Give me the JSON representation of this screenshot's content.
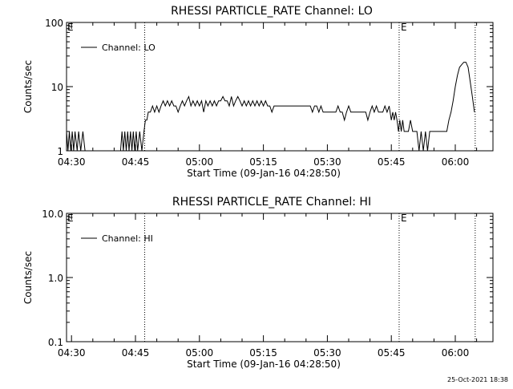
{
  "chart_data": [
    {
      "type": "line",
      "title": "RHESSI PARTICLE_RATE Channel: LO",
      "xlabel": "Start Time (09-Jan-16 04:28:50)",
      "ylabel": "Counts/sec",
      "yscale": "log",
      "ylim": [
        1,
        100
      ],
      "xlim": [
        "04:28:50",
        "06:08:50"
      ],
      "y_ticks": [
        "1",
        "10",
        "100"
      ],
      "x_ticks": [
        "04:30",
        "04:45",
        "05:00",
        "05:15",
        "05:30",
        "05:45",
        "06:00"
      ],
      "legend": [
        "Channel: LO"
      ],
      "legend_position": "top-left",
      "markers": [
        {
          "time": "04:47:10",
          "label": ""
        },
        {
          "time": "05:46:50",
          "label": "E"
        },
        {
          "time": "06:04:40",
          "label": ""
        }
      ],
      "start_label": "E",
      "series": [
        {
          "name": "Channel: LO",
          "points": [
            [
              "04:28:50",
              2
            ],
            [
              "04:29:10",
              1
            ],
            [
              "04:29:30",
              2
            ],
            [
              "04:29:50",
              1
            ],
            [
              "04:30:10",
              2
            ],
            [
              "04:30:30",
              1
            ],
            [
              "04:30:50",
              2
            ],
            [
              "04:31:20",
              1
            ],
            [
              "04:31:40",
              2
            ],
            [
              "04:32:10",
              1
            ],
            [
              "04:32:40",
              2
            ],
            [
              "04:33:10",
              1
            ],
            [
              "04:33:40",
              1
            ],
            [
              "04:41:30",
              1
            ],
            [
              "04:41:50",
              2
            ],
            [
              "04:42:10",
              1
            ],
            [
              "04:42:30",
              2
            ],
            [
              "04:42:50",
              1
            ],
            [
              "04:43:10",
              2
            ],
            [
              "04:43:30",
              1
            ],
            [
              "04:43:50",
              2
            ],
            [
              "04:44:10",
              1
            ],
            [
              "04:44:30",
              2
            ],
            [
              "04:44:50",
              1
            ],
            [
              "04:45:10",
              2
            ],
            [
              "04:45:30",
              1
            ],
            [
              "04:46:00",
              2
            ],
            [
              "04:46:30",
              1
            ],
            [
              "04:47:00",
              2
            ],
            [
              "04:47:20",
              3
            ],
            [
              "04:47:40",
              3
            ],
            [
              "04:48:00",
              4
            ],
            [
              "04:48:30",
              4
            ],
            [
              "04:49:00",
              5
            ],
            [
              "04:49:30",
              4
            ],
            [
              "04:50:00",
              5
            ],
            [
              "04:50:30",
              4
            ],
            [
              "04:51:00",
              5
            ],
            [
              "04:51:30",
              6
            ],
            [
              "04:52:00",
              5
            ],
            [
              "04:52:30",
              6
            ],
            [
              "04:53:00",
              5
            ],
            [
              "04:53:30",
              6
            ],
            [
              "04:54:00",
              5
            ],
            [
              "04:54:30",
              5
            ],
            [
              "04:55:00",
              4
            ],
            [
              "04:55:30",
              5
            ],
            [
              "04:56:00",
              6
            ],
            [
              "04:56:30",
              5
            ],
            [
              "04:57:00",
              6
            ],
            [
              "04:57:30",
              7
            ],
            [
              "04:58:00",
              5
            ],
            [
              "04:58:30",
              6
            ],
            [
              "04:59:00",
              5
            ],
            [
              "04:59:30",
              6
            ],
            [
              "05:00:00",
              5
            ],
            [
              "05:00:30",
              6
            ],
            [
              "05:01:00",
              4
            ],
            [
              "05:01:30",
              6
            ],
            [
              "05:02:00",
              5
            ],
            [
              "05:02:30",
              6
            ],
            [
              "05:03:00",
              5
            ],
            [
              "05:03:30",
              6
            ],
            [
              "05:04:00",
              5
            ],
            [
              "05:04:30",
              6
            ],
            [
              "05:05:00",
              6
            ],
            [
              "05:05:30",
              7
            ],
            [
              "05:06:00",
              6
            ],
            [
              "05:06:30",
              6
            ],
            [
              "05:07:00",
              5
            ],
            [
              "05:07:30",
              7
            ],
            [
              "05:08:00",
              5
            ],
            [
              "05:08:30",
              6
            ],
            [
              "05:09:00",
              7
            ],
            [
              "05:09:30",
              6
            ],
            [
              "05:10:00",
              5
            ],
            [
              "05:10:30",
              6
            ],
            [
              "05:11:00",
              5
            ],
            [
              "05:11:30",
              6
            ],
            [
              "05:12:00",
              5
            ],
            [
              "05:12:30",
              6
            ],
            [
              "05:13:00",
              5
            ],
            [
              "05:13:30",
              6
            ],
            [
              "05:14:00",
              5
            ],
            [
              "05:14:30",
              6
            ],
            [
              "05:15:00",
              5
            ],
            [
              "05:15:30",
              6
            ],
            [
              "05:16:00",
              5
            ],
            [
              "05:16:30",
              5
            ],
            [
              "05:17:00",
              4
            ],
            [
              "05:17:30",
              5
            ],
            [
              "05:18:00",
              5
            ],
            [
              "05:19:00",
              5
            ],
            [
              "05:20:00",
              5
            ],
            [
              "05:21:00",
              5
            ],
            [
              "05:22:00",
              5
            ],
            [
              "05:23:00",
              5
            ],
            [
              "05:24:00",
              5
            ],
            [
              "05:25:00",
              5
            ],
            [
              "05:26:00",
              5
            ],
            [
              "05:26:30",
              4
            ],
            [
              "05:27:00",
              5
            ],
            [
              "05:27:30",
              5
            ],
            [
              "05:28:00",
              4
            ],
            [
              "05:28:30",
              5
            ],
            [
              "05:29:00",
              4
            ],
            [
              "05:30:00",
              4
            ],
            [
              "05:31:00",
              4
            ],
            [
              "05:32:00",
              4
            ],
            [
              "05:32:30",
              5
            ],
            [
              "05:33:00",
              4
            ],
            [
              "05:33:30",
              4
            ],
            [
              "05:34:00",
              3
            ],
            [
              "05:34:30",
              4
            ],
            [
              "05:35:00",
              5
            ],
            [
              "05:35:30",
              4
            ],
            [
              "05:36:00",
              4
            ],
            [
              "05:37:00",
              4
            ],
            [
              "05:38:00",
              4
            ],
            [
              "05:39:00",
              4
            ],
            [
              "05:39:30",
              3
            ],
            [
              "05:40:00",
              4
            ],
            [
              "05:40:30",
              5
            ],
            [
              "05:41:00",
              4
            ],
            [
              "05:41:30",
              5
            ],
            [
              "05:42:00",
              4
            ],
            [
              "05:43:00",
              4
            ],
            [
              "05:43:30",
              5
            ],
            [
              "05:44:00",
              4
            ],
            [
              "05:44:30",
              5
            ],
            [
              "05:45:00",
              3
            ],
            [
              "05:45:20",
              4
            ],
            [
              "05:45:40",
              3
            ],
            [
              "05:46:00",
              4
            ],
            [
              "05:46:20",
              3
            ],
            [
              "05:46:40",
              2
            ],
            [
              "05:47:00",
              3
            ],
            [
              "05:47:20",
              2
            ],
            [
              "05:47:40",
              3
            ],
            [
              "05:48:00",
              2
            ],
            [
              "05:48:30",
              2
            ],
            [
              "05:49:00",
              2
            ],
            [
              "05:49:30",
              3
            ],
            [
              "05:50:00",
              2
            ],
            [
              "05:51:00",
              2
            ],
            [
              "05:51:30",
              1
            ],
            [
              "05:52:00",
              2
            ],
            [
              "05:52:30",
              1
            ],
            [
              "05:53:00",
              2
            ],
            [
              "05:53:30",
              1
            ],
            [
              "05:54:00",
              2
            ],
            [
              "05:55:00",
              2
            ],
            [
              "05:56:00",
              2
            ],
            [
              "05:57:00",
              2
            ],
            [
              "05:58:00",
              2
            ],
            [
              "05:58:30",
              3
            ],
            [
              "05:59:00",
              4
            ],
            [
              "05:59:30",
              6
            ],
            [
              "06:00:00",
              10
            ],
            [
              "06:00:30",
              15
            ],
            [
              "06:01:00",
              20
            ],
            [
              "06:01:30",
              22
            ],
            [
              "06:02:00",
              24
            ],
            [
              "06:02:30",
              24
            ],
            [
              "06:03:00",
              20
            ],
            [
              "06:03:30",
              12
            ],
            [
              "06:04:00",
              7
            ],
            [
              "06:04:30",
              4
            ]
          ]
        }
      ]
    },
    {
      "type": "line",
      "title": "RHESSI PARTICLE_RATE Channel: HI",
      "xlabel": "Start Time (09-Jan-16 04:28:50)",
      "ylabel": "Counts/sec",
      "yscale": "log",
      "ylim": [
        0.1,
        10
      ],
      "xlim": [
        "04:28:50",
        "06:08:50"
      ],
      "y_ticks": [
        "0.1",
        "1.0",
        "10.0"
      ],
      "x_ticks": [
        "04:30",
        "04:45",
        "05:00",
        "05:15",
        "05:30",
        "05:45",
        "06:00"
      ],
      "legend": [
        "Channel: HI"
      ],
      "legend_position": "top-left",
      "markers": [
        {
          "time": "04:47:10",
          "label": ""
        },
        {
          "time": "05:46:50",
          "label": "E"
        },
        {
          "time": "06:04:40",
          "label": ""
        }
      ],
      "start_label": "E",
      "series": [
        {
          "name": "Channel: HI",
          "points": []
        }
      ]
    }
  ],
  "footer": {
    "timestamp": "25-Oct-2021 18:38"
  }
}
